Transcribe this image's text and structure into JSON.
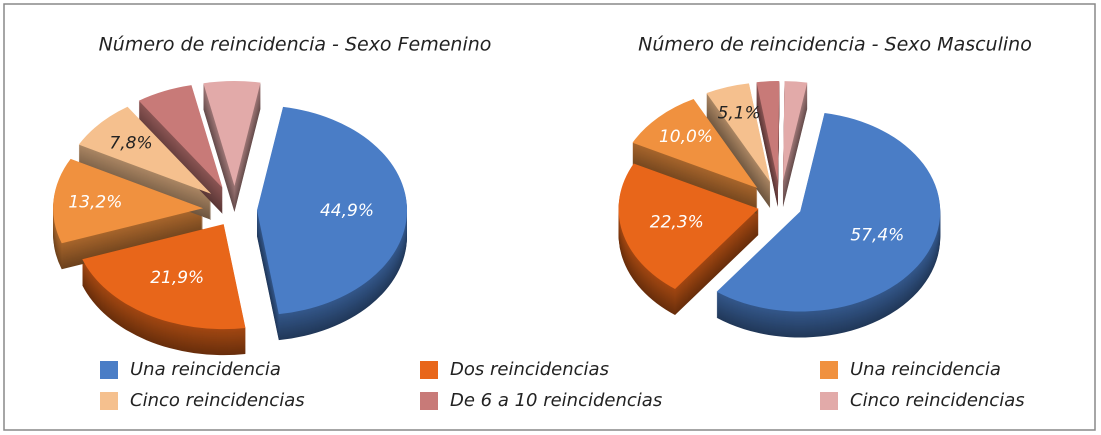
{
  "chart_data": [
    {
      "type": "pie",
      "title": "Número de reincidencia - Sexo Femenino",
      "values": [
        44.9,
        21.9,
        13.2,
        7.8,
        6.1,
        6.1
      ],
      "value_labels": [
        "44,9%",
        "21,9%",
        "13,2%",
        "7,8%",
        null,
        null
      ]
    },
    {
      "type": "pie",
      "title": "Número de reincidencia - Sexo Masculino",
      "values": [
        57.4,
        22.3,
        10.0,
        5.1,
        2.6,
        2.6
      ],
      "value_labels": [
        "57,4%",
        "22,3%",
        "10,0%",
        "5,1%",
        null,
        null
      ]
    }
  ],
  "legend": {
    "categories": [
      "Una reincidencia",
      "Dos reincidencias",
      "Una reincidencia",
      "Cinco reincidencias",
      "De 6 a 10 reincidencias",
      "Cinco reincidencias"
    ],
    "colors": [
      "#4a7dc6",
      "#e8661a",
      "#f0913f",
      "#f5c08e",
      "#c87a78",
      "#e2aaa9"
    ]
  }
}
